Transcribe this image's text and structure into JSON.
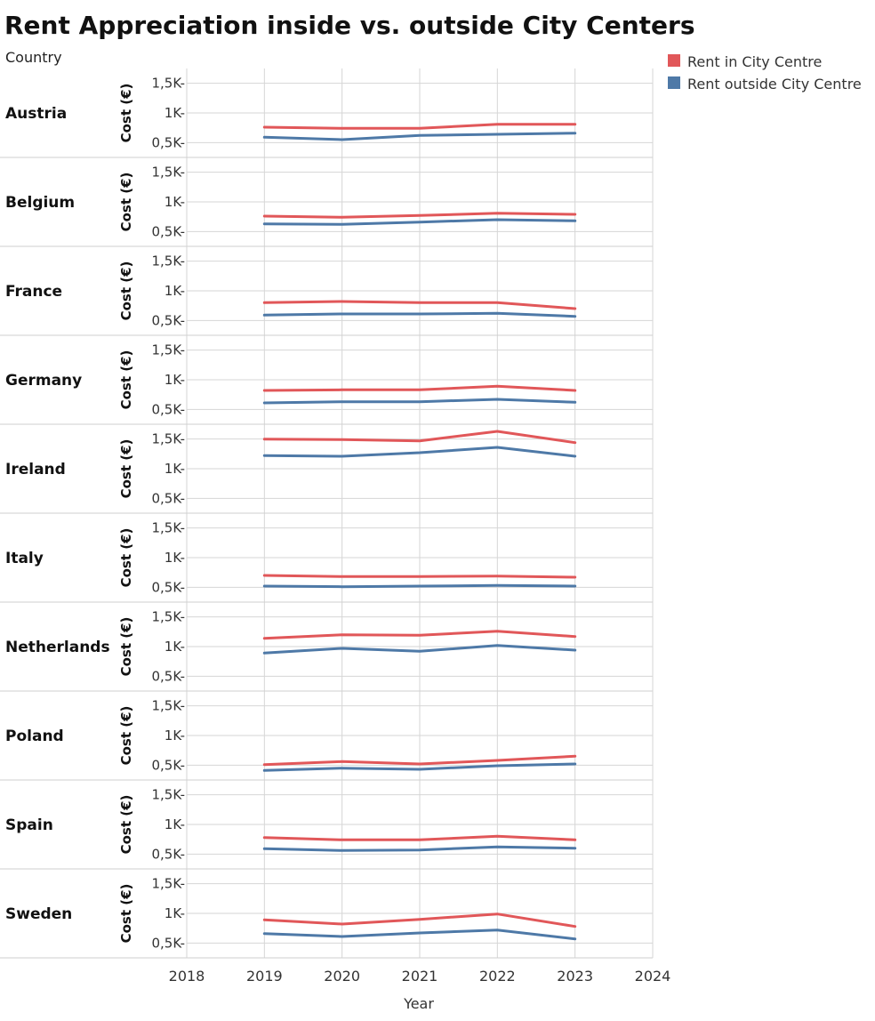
{
  "chart_data": {
    "type": "line",
    "title": "Rent Appreciation inside vs. outside City Centers",
    "row_header": "Country",
    "ylabel": "Cost (€)",
    "xlabel": "Year",
    "x_ticks": [
      "2018",
      "2019",
      "2020",
      "2021",
      "2022",
      "2023",
      "2024"
    ],
    "x_range": [
      2018,
      2024
    ],
    "y_ticks": [
      "0,5K",
      "1K",
      "1,5K"
    ],
    "y_range": [
      250,
      1750
    ],
    "grid": true,
    "legend_position": "top-right",
    "x": [
      2019,
      2020,
      2021,
      2022,
      2023
    ],
    "series": [
      {
        "name": "Rent in City Centre",
        "color": "#e15759"
      },
      {
        "name": "Rent outside City Centre",
        "color": "#4e79a7"
      }
    ],
    "panels": [
      {
        "country": "Austria",
        "values": [
          [
            760,
            740,
            740,
            810,
            810
          ],
          [
            590,
            550,
            620,
            640,
            660
          ]
        ]
      },
      {
        "country": "Belgium",
        "values": [
          [
            760,
            740,
            770,
            810,
            790
          ],
          [
            630,
            620,
            660,
            700,
            680
          ]
        ]
      },
      {
        "country": "France",
        "values": [
          [
            800,
            820,
            800,
            800,
            700
          ],
          [
            590,
            610,
            610,
            620,
            570
          ]
        ]
      },
      {
        "country": "Germany",
        "values": [
          [
            820,
            830,
            830,
            890,
            820
          ],
          [
            610,
            630,
            630,
            670,
            620
          ]
        ]
      },
      {
        "country": "Ireland",
        "values": [
          [
            1500,
            1490,
            1470,
            1630,
            1440
          ],
          [
            1220,
            1210,
            1270,
            1360,
            1210
          ]
        ]
      },
      {
        "country": "Italy",
        "values": [
          [
            700,
            680,
            680,
            690,
            670
          ],
          [
            520,
            510,
            520,
            530,
            520
          ]
        ]
      },
      {
        "country": "Netherlands",
        "values": [
          [
            1140,
            1200,
            1190,
            1260,
            1170
          ],
          [
            890,
            970,
            920,
            1020,
            940
          ]
        ]
      },
      {
        "country": "Poland",
        "values": [
          [
            510,
            560,
            520,
            580,
            650
          ],
          [
            410,
            450,
            430,
            490,
            520
          ]
        ]
      },
      {
        "country": "Spain",
        "values": [
          [
            780,
            740,
            740,
            800,
            740
          ],
          [
            590,
            560,
            570,
            620,
            600
          ]
        ]
      },
      {
        "country": "Sweden",
        "values": [
          [
            890,
            820,
            900,
            990,
            780
          ],
          [
            660,
            610,
            670,
            720,
            570
          ]
        ]
      }
    ]
  }
}
